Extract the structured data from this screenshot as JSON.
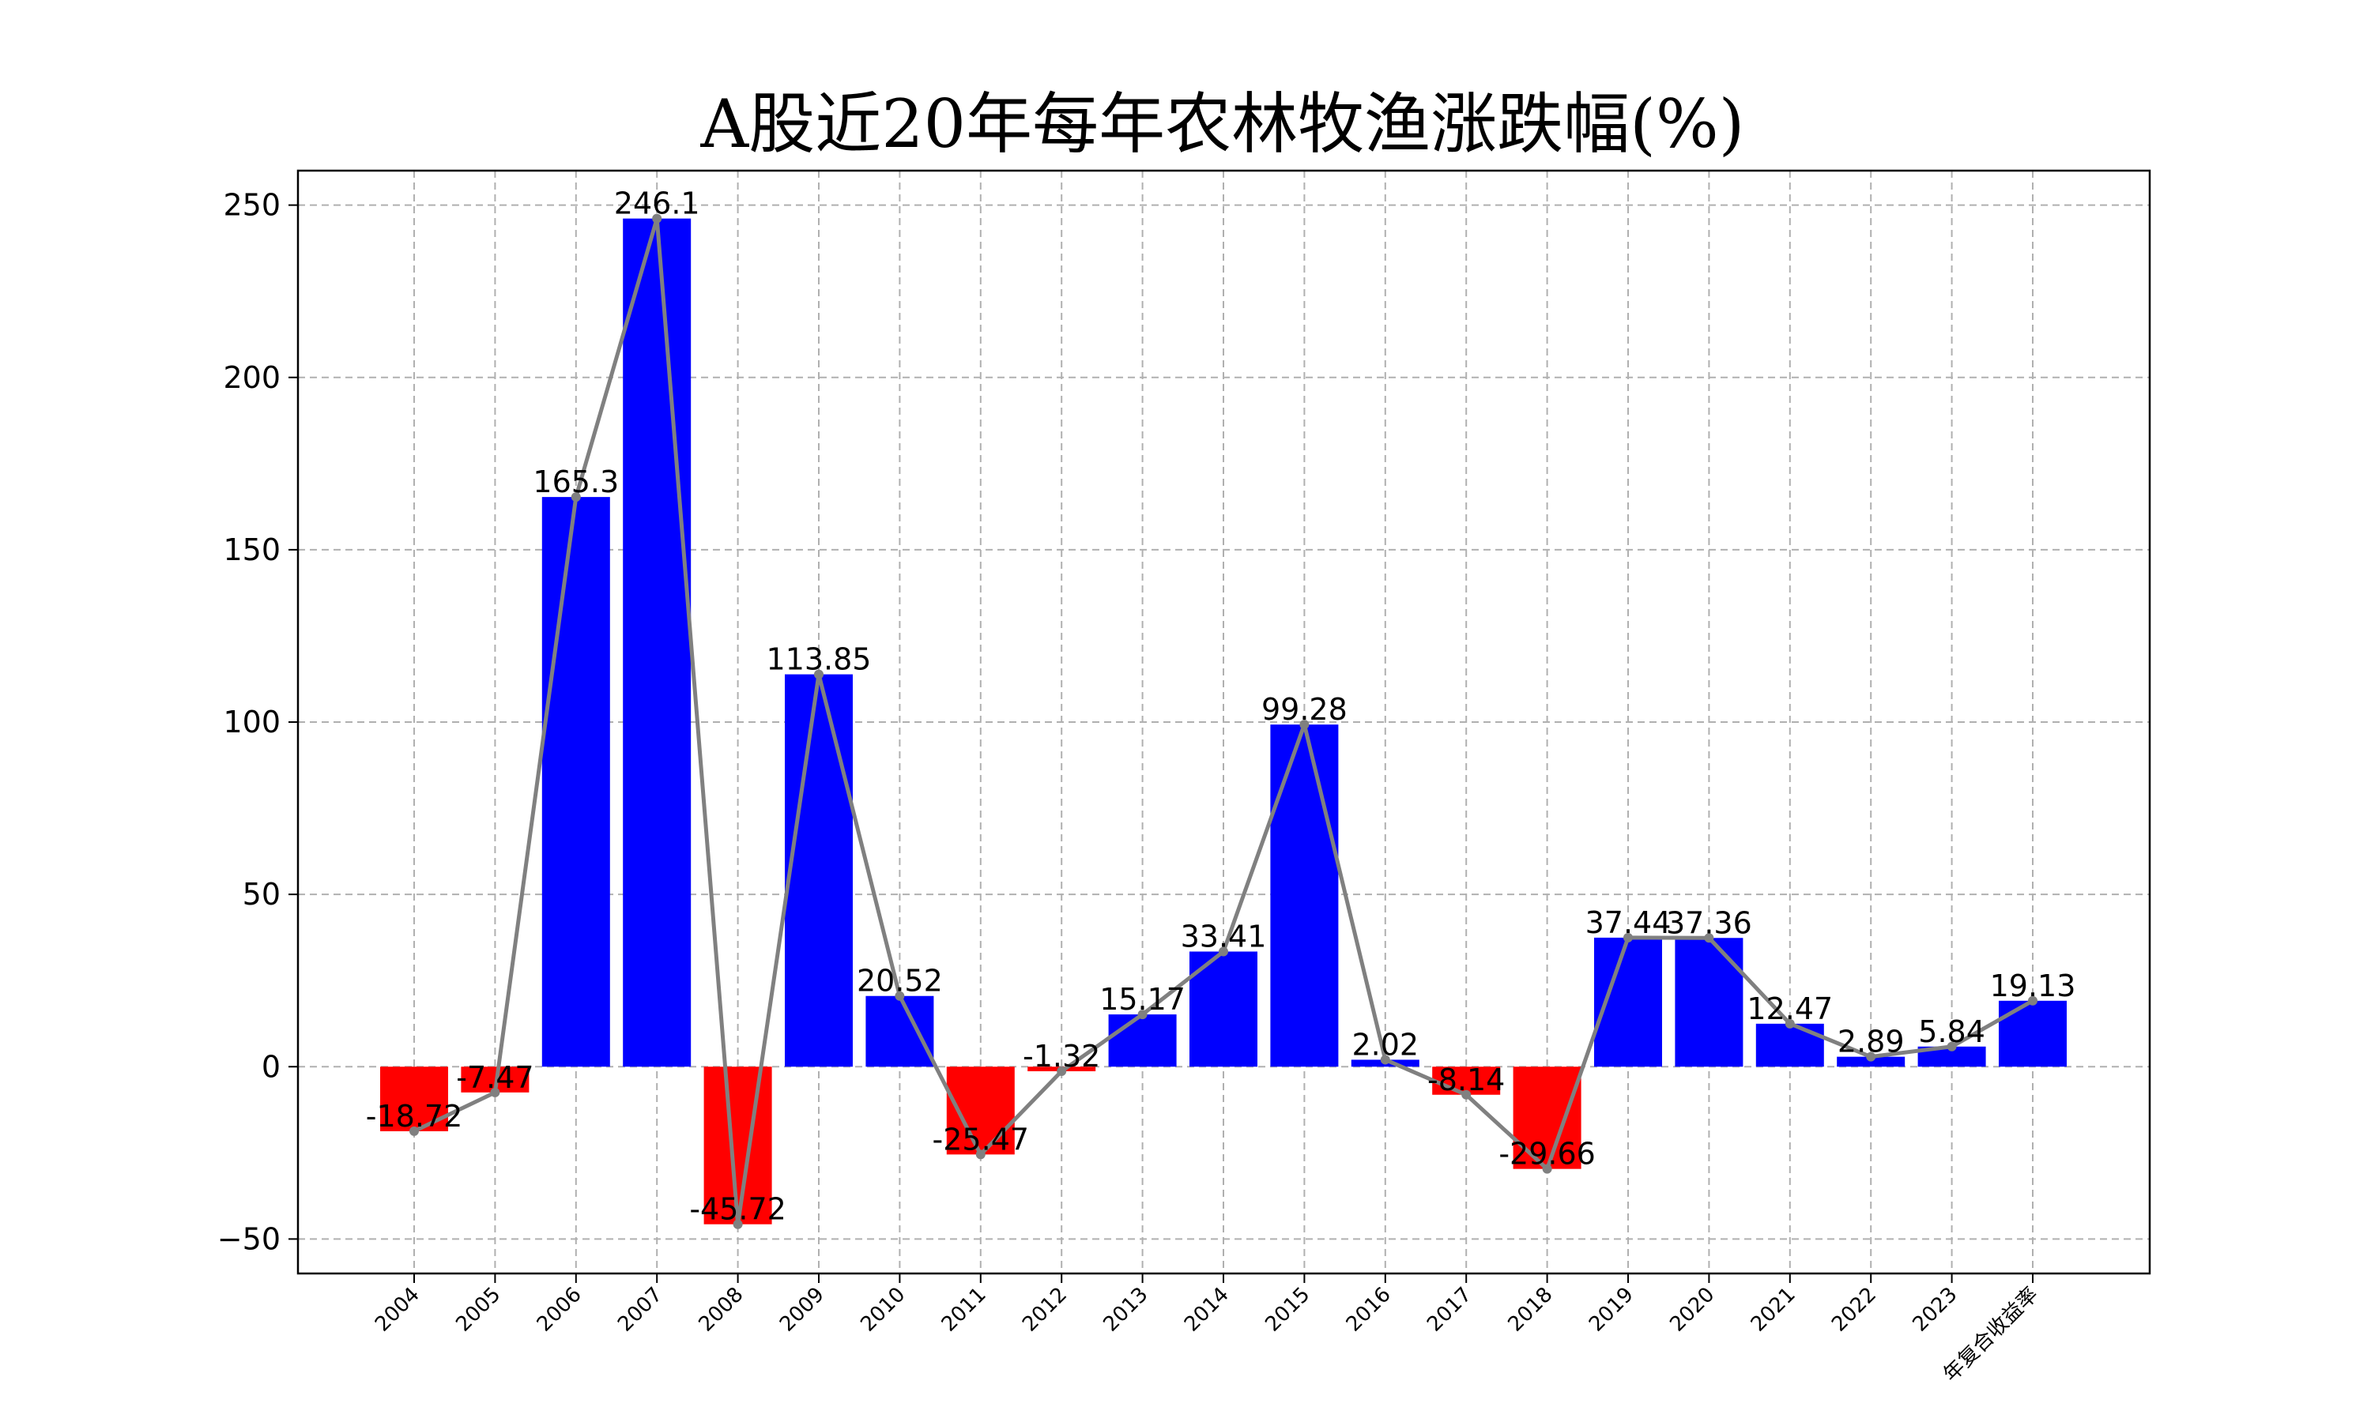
{
  "chart_data": {
    "type": "bar",
    "title": "A股近20年每年农林牧渔涨跌幅(%)",
    "xlabel": "",
    "ylabel": "",
    "categories": [
      "2004",
      "2005",
      "2006",
      "2007",
      "2008",
      "2009",
      "2010",
      "2011",
      "2012",
      "2013",
      "2014",
      "2015",
      "2016",
      "2017",
      "2018",
      "2019",
      "2020",
      "2021",
      "2022",
      "2023",
      "年复合收益率"
    ],
    "values": [
      -18.72,
      -7.47,
      165.3,
      246.1,
      -45.72,
      113.85,
      20.52,
      -25.47,
      -1.32,
      15.17,
      33.41,
      99.28,
      2.02,
      -8.14,
      -29.66,
      37.44,
      37.36,
      12.47,
      2.89,
      5.84,
      19.13
    ],
    "value_labels": [
      "-18.72",
      "-7.47",
      "165.3",
      "246.1",
      "-45.72",
      "113.85",
      "20.52",
      "-25.47",
      "-1.32",
      "15.17",
      "33.41",
      "99.28",
      "2.02",
      "-8.14",
      "-29.66",
      "37.44",
      "37.36",
      "12.47",
      "2.89",
      "5.84",
      "19.13"
    ],
    "overlay_line": {
      "type": "line",
      "color": "#808080",
      "marker": "dot"
    },
    "yticks": [
      "250",
      "200",
      "150",
      "100",
      "50",
      "0",
      "−50"
    ],
    "ytick_values": [
      250,
      200,
      150,
      100,
      50,
      0,
      -50
    ],
    "ylim": [
      -60,
      260
    ],
    "grid": true,
    "grid_style": "dashed",
    "legend": "none",
    "colors": {
      "positive": "#0000ff",
      "negative": "#ff0000",
      "line": "#808080",
      "grid": "#b0b0b0"
    }
  }
}
